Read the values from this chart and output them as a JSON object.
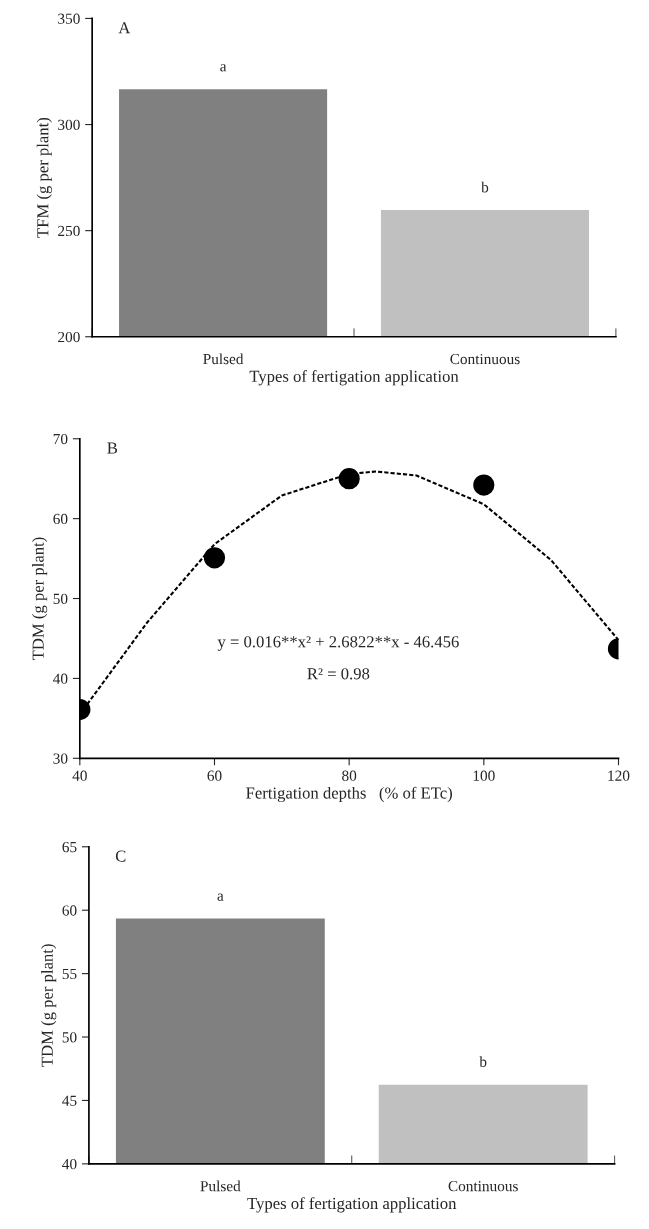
{
  "chart_data": [
    {
      "type": "bar",
      "title": "A",
      "xlabel": "Types of fertigation application",
      "ylabel": "TFM (g per plant)",
      "categories": [
        "Pulsed",
        "Continuous"
      ],
      "values": [
        317,
        260
      ],
      "colors": [
        "#808080",
        "#c0c0c0"
      ],
      "ylim": [
        200,
        350
      ],
      "yticks": [
        200,
        250,
        300,
        350
      ],
      "grid": false,
      "legend": false,
      "annotations": [
        {
          "text": "a",
          "x": "Pulsed",
          "y": 317
        },
        {
          "text": "b",
          "x": "Continuous",
          "y": 260
        }
      ]
    },
    {
      "type": "scatter",
      "title": "B",
      "xlabel": "Fertigation depths   (% of ETc)",
      "ylabel": "TDM (g per plant)",
      "series": [
        {
          "type": "scatter",
          "color": "#000000",
          "marker": "circle",
          "x": [
            40,
            60,
            80,
            100,
            120
          ],
          "values": [
            36.1,
            55.1,
            65.0,
            64.2,
            43.7
          ]
        },
        {
          "type": "line",
          "color": "#000000",
          "line_style": "dashed",
          "marker": "none",
          "x": [
            40,
            50,
            60,
            70,
            80,
            84,
            90,
            100,
            110,
            120
          ],
          "values": [
            35.5,
            47.0,
            56.8,
            62.9,
            65.6,
            65.9,
            65.4,
            61.8,
            54.8,
            44.8
          ]
        }
      ],
      "xlim": [
        40,
        120
      ],
      "xticks": [
        40,
        60,
        80,
        100,
        120
      ],
      "ylim": [
        30,
        70
      ],
      "yticks": [
        30,
        40,
        50,
        60,
        70
      ],
      "grid": false,
      "legend": false,
      "annotations": [
        "y = 0.016**x² + 2.6822**x - 46.456",
        "R² = 0.98"
      ]
    },
    {
      "type": "bar",
      "title": "C",
      "xlabel": "Types of fertigation application",
      "ylabel": "TDM (g per plant)",
      "categories": [
        "Pulsed",
        "Continuous"
      ],
      "values": [
        59.4,
        46.3
      ],
      "colors": [
        "#808080",
        "#c0c0c0"
      ],
      "ylim": [
        40,
        65
      ],
      "yticks": [
        40,
        45,
        50,
        55,
        60,
        65
      ],
      "grid": false,
      "legend": false,
      "annotations": [
        {
          "text": "a",
          "x": "Pulsed",
          "y": 59.4
        },
        {
          "text": "b",
          "x": "Continuous",
          "y": 46.3
        }
      ]
    }
  ]
}
